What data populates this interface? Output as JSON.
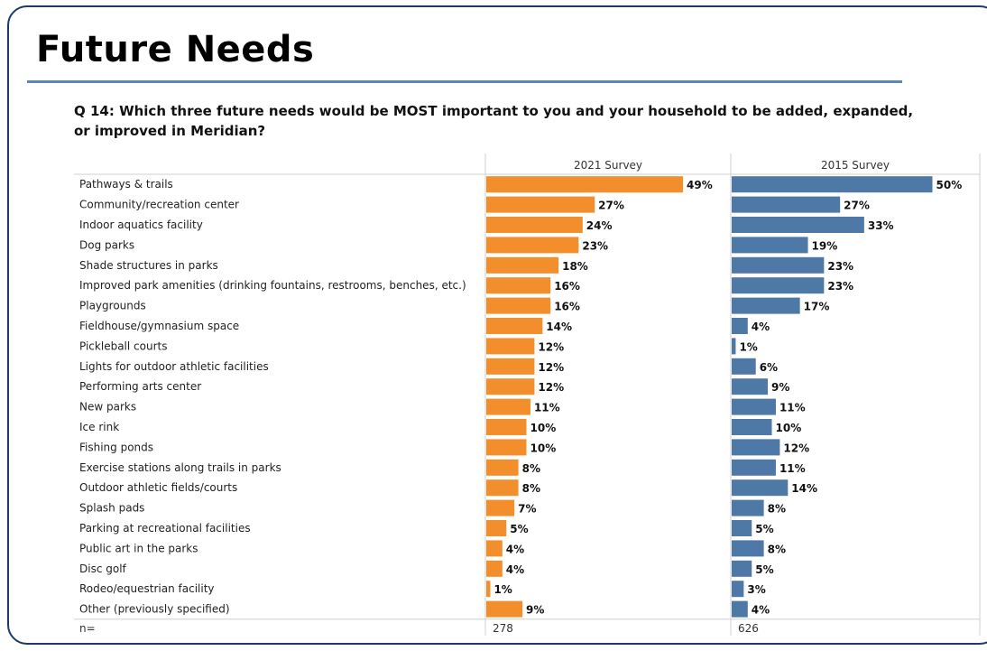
{
  "slide": {
    "title": "Future Needs",
    "question": "Q 14: Which three future needs would be MOST important to you and your household to be added, expanded, or improved in Meridian?"
  },
  "colors": {
    "series_2021": "#f28e2b",
    "series_2015": "#4e79a7",
    "frame": "#1f3a68",
    "rule": "#5b86c2"
  },
  "chart_data": {
    "type": "bar",
    "orientation": "horizontal",
    "categories": [
      "Pathways & trails",
      "Community/recreation center",
      "Indoor aquatics facility",
      "Dog parks",
      "Shade structures in parks",
      "Improved park amenities (drinking fountains, restrooms, benches, etc.)",
      "Playgrounds",
      "Fieldhouse/gymnasium space",
      "Pickleball courts",
      "Lights for outdoor athletic facilities",
      "Performing arts center",
      "New parks",
      "Ice rink",
      "Fishing ponds",
      "Exercise stations along trails in parks",
      "Outdoor athletic fields/courts",
      "Splash pads",
      "Parking at recreational facilities",
      "Public art in the parks",
      "Disc golf",
      "Rodeo/equestrian facility",
      "Other (previously specified)"
    ],
    "series": [
      {
        "name": "2021 Survey",
        "values": [
          49,
          27,
          24,
          23,
          18,
          16,
          16,
          14,
          12,
          12,
          12,
          11,
          10,
          10,
          8,
          8,
          7,
          5,
          4,
          4,
          1,
          9
        ],
        "n": "278"
      },
      {
        "name": "2015 Survey",
        "values": [
          50,
          27,
          33,
          19,
          23,
          23,
          17,
          4,
          1,
          6,
          9,
          11,
          10,
          12,
          11,
          14,
          8,
          5,
          8,
          5,
          3,
          4
        ],
        "n": "626"
      }
    ],
    "n_label": "n=",
    "value_suffix": "%",
    "xlim": [
      0,
      60
    ]
  }
}
